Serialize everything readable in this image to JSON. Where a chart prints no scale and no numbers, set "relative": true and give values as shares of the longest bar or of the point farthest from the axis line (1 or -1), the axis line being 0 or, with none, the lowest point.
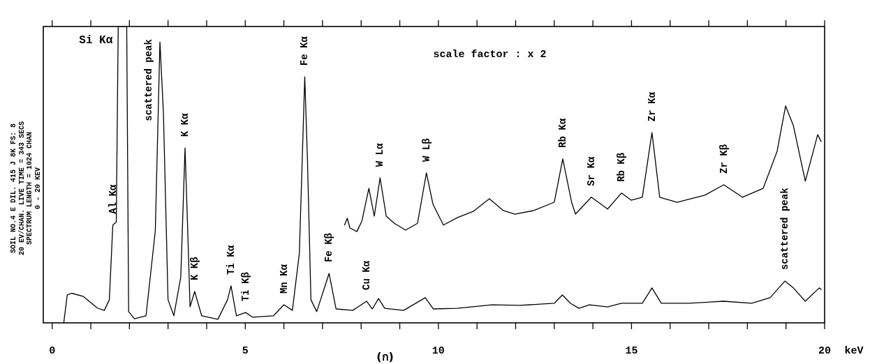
{
  "chart_data": {
    "type": "line",
    "relative": true,
    "xlabel": "keV",
    "xlim": [
      -0.23,
      20.0
    ],
    "xticks": [
      0,
      {
        "value": 1,
        "label": null
      },
      {
        "value": 2,
        "label": null
      },
      {
        "value": 3,
        "label": null
      },
      {
        "value": 4,
        "label": null
      },
      5,
      {
        "value": 6,
        "label": null
      },
      {
        "value": 7,
        "label": null
      },
      {
        "value": 8,
        "label": null
      },
      {
        "value": 9,
        "label": null
      },
      10,
      {
        "value": 11,
        "label": null
      },
      {
        "value": 12,
        "label": null
      },
      {
        "value": 13,
        "label": null
      },
      {
        "value": 14,
        "label": null
      },
      15,
      {
        "value": 16,
        "label": null
      },
      {
        "value": 17,
        "label": null
      },
      {
        "value": 18,
        "label": null
      },
      {
        "value": 19,
        "label": null
      },
      20
    ],
    "tick_labels": "x",
    "series": [
      {
        "color": "#000000",
        "x": [
          0.3,
          0.39,
          0.5,
          0.81,
          1.17,
          1.35,
          1.48,
          1.57,
          1.66,
          1.71,
          1.93,
          1.98,
          2.13,
          2.43,
          2.67,
          2.79,
          2.88,
          3.0,
          3.15,
          3.33,
          3.44,
          3.51,
          3.57,
          3.69,
          3.87,
          4.29,
          4.54,
          4.63,
          4.77,
          5.01,
          5.19,
          5.73,
          6.0,
          6.22,
          6.4,
          6.54,
          6.61,
          6.7,
          6.85,
          7.17,
          7.35,
          7.78,
          8.14,
          8.29,
          8.45,
          8.61,
          9.1,
          9.66,
          9.87,
          10.49,
          11.39,
          12.11,
          13.0,
          13.21,
          13.42,
          13.64,
          13.91,
          14.38,
          14.74,
          15.28,
          15.53,
          15.77,
          16.49,
          17.39,
          18.11,
          18.59,
          18.97,
          19.19,
          19.5,
          19.86,
          19.91
        ],
        "values": [
          0,
          0.094,
          0.1,
          0.089,
          0.05,
          0.042,
          0.078,
          0.33,
          0.34,
          1.0,
          1.0,
          0.038,
          0.014,
          0.024,
          0.31,
          0.948,
          0.71,
          0.078,
          0.024,
          0.155,
          0.59,
          0.31,
          0.054,
          0.106,
          0.024,
          0.012,
          0.078,
          0.125,
          0.024,
          0.035,
          0.019,
          0.024,
          0.061,
          0.042,
          0.235,
          0.83,
          0.55,
          0.078,
          0.038,
          0.167,
          0.047,
          0.042,
          0.073,
          0.047,
          0.082,
          0.049,
          0.042,
          0.085,
          0.047,
          0.049,
          0.061,
          0.059,
          0.066,
          0.094,
          0.066,
          0.049,
          0.061,
          0.054,
          0.066,
          0.066,
          0.118,
          0.066,
          0.066,
          0.073,
          0.066,
          0.085,
          0.141,
          0.118,
          0.073,
          0.118,
          0.113
        ]
      },
      {
        "color": "#000000",
        "x": [
          7.57,
          7.64,
          7.71,
          7.89,
          8.02,
          8.2,
          8.34,
          8.49,
          8.65,
          8.86,
          9.15,
          9.46,
          9.69,
          9.86,
          10.13,
          10.49,
          10.9,
          11.32,
          11.68,
          11.98,
          12.47,
          13.0,
          13.22,
          13.45,
          13.55,
          13.96,
          14.14,
          14.38,
          14.74,
          14.99,
          15.28,
          15.53,
          15.73,
          16.18,
          16.9,
          17.39,
          17.87,
          18.41,
          18.77,
          18.99,
          19.19,
          19.5,
          19.82,
          19.91
        ],
        "values": [
          0.33,
          0.353,
          0.32,
          0.308,
          0.344,
          0.454,
          0.36,
          0.489,
          0.36,
          0.336,
          0.313,
          0.336,
          0.506,
          0.4,
          0.33,
          0.355,
          0.376,
          0.419,
          0.379,
          0.367,
          0.379,
          0.407,
          0.553,
          0.407,
          0.367,
          0.424,
          0.407,
          0.384,
          0.438,
          0.414,
          0.424,
          0.642,
          0.424,
          0.407,
          0.431,
          0.466,
          0.424,
          0.454,
          0.579,
          0.732,
          0.666,
          0.478,
          0.635,
          0.612
        ]
      }
    ],
    "annotations": [
      "SOIL NO.4 E DIL. 415 J    8K FS: 8\n20 EV/CHAN. LIVE TIME = 343 SECS\nSPECTRUM LENGTH = 1024 CHAN\n0 - 20 KEV",
      "scale factor : x 2",
      "(ก)",
      {
        "text": "Si Kα",
        "x": 1.71,
        "y": 1.0
      },
      {
        "text": "Al Kα",
        "x": 1.57,
        "y": 0.33
      },
      {
        "text": "scattered peak",
        "x": 2.79,
        "y": 0.948
      },
      {
        "text": "K Kα",
        "x": 3.44,
        "y": 0.59
      },
      {
        "text": "K Kβ",
        "x": 3.69,
        "y": 0.106
      },
      {
        "text": "Ti Kα",
        "x": 4.63,
        "y": 0.125
      },
      {
        "text": "Ti Kβ",
        "x": 5.01,
        "y": 0.035
      },
      {
        "text": "Mn Kα",
        "x": 6.0,
        "y": 0.061
      },
      {
        "text": "Fe Kα",
        "x": 6.54,
        "y": 0.83
      },
      {
        "text": "Fe Kβ",
        "x": 7.17,
        "y": 0.167
      },
      {
        "text": "Cu Kα",
        "x": 8.14,
        "y": 0.073
      },
      {
        "text": "W Lα",
        "x": 8.49,
        "y": 0.489
      },
      {
        "text": "W Lβ",
        "x": 9.69,
        "y": 0.506
      },
      {
        "text": "Rb Kα",
        "x": 13.22,
        "y": 0.553
      },
      {
        "text": "Sr Kα",
        "x": 13.96,
        "y": 0.424
      },
      {
        "text": "Rb Kβ",
        "x": 14.74,
        "y": 0.438
      },
      {
        "text": "Zr Kα",
        "x": 15.53,
        "y": 0.642
      },
      {
        "text": "Zr Kβ",
        "x": 17.39,
        "y": 0.466
      },
      {
        "text": "scattered peak",
        "x": 18.97,
        "y": 0.141
      }
    ]
  }
}
